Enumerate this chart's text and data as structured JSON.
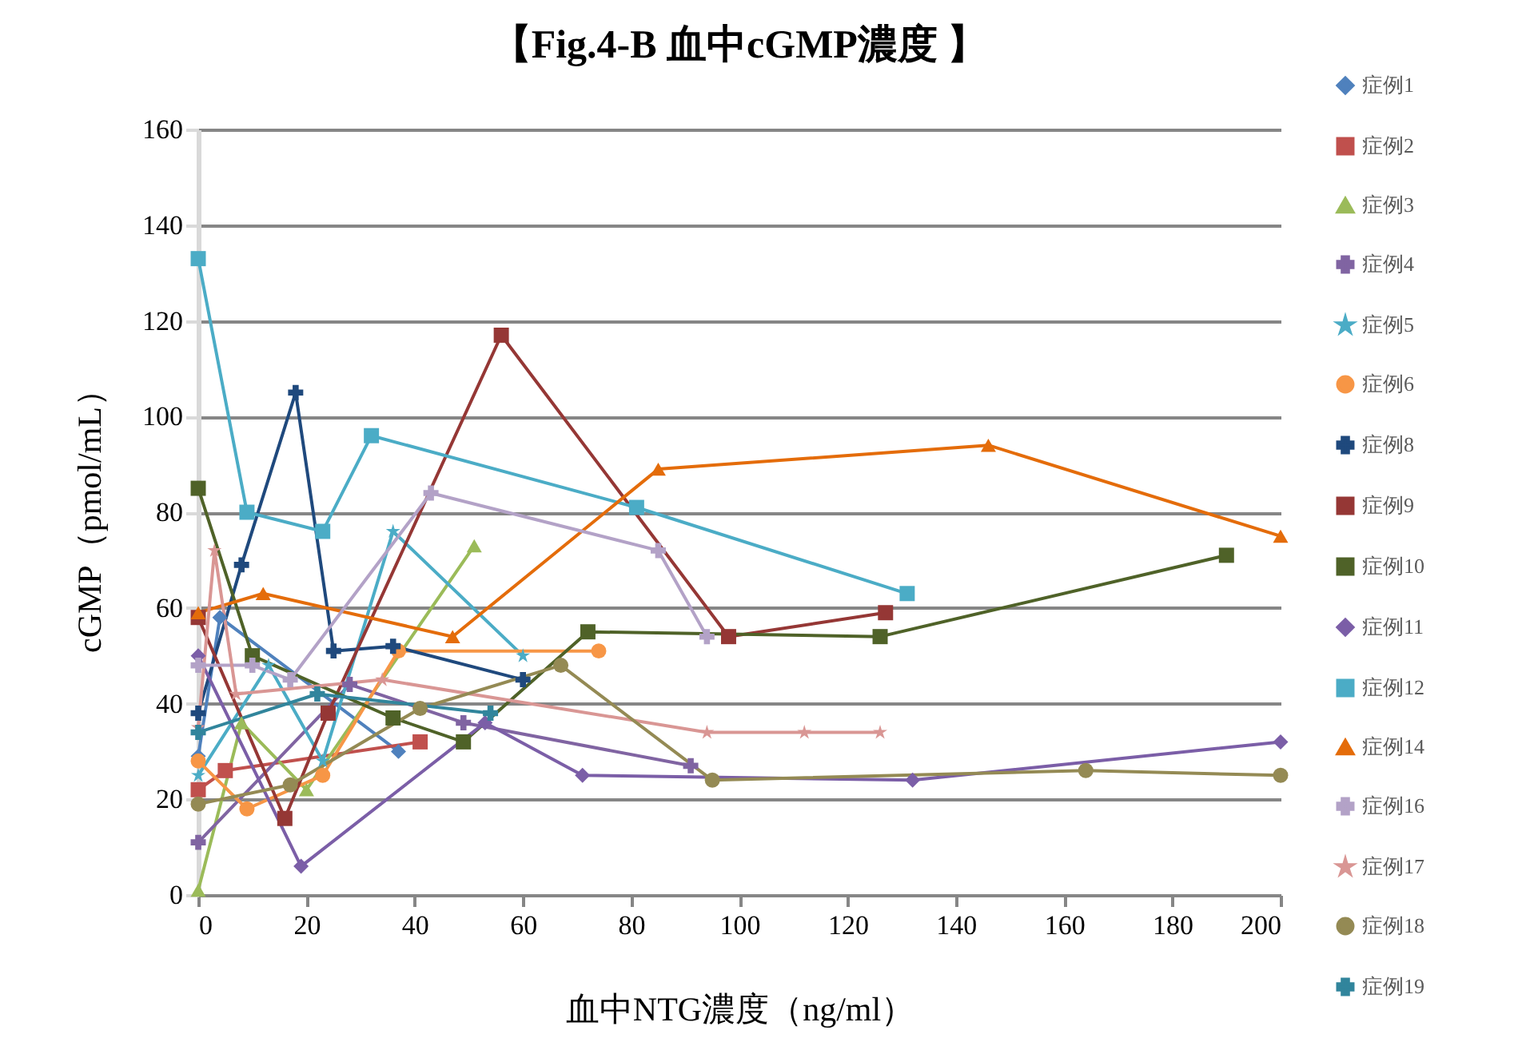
{
  "chart_data": {
    "type": "line",
    "title": "【Fig.4-B  血中cGMP濃度 】",
    "xlabel": "血中NTG濃度（ng/ml）",
    "ylabel": "cGMP（pmol/mL）",
    "xlim": [
      0,
      200
    ],
    "xticks": [
      0,
      20,
      40,
      60,
      80,
      100,
      120,
      140,
      160,
      180,
      200
    ],
    "ylim": [
      0,
      160
    ],
    "yticks": [
      0,
      20,
      40,
      60,
      80,
      100,
      120,
      140,
      160
    ],
    "grid": "y",
    "legend": "right",
    "series": [
      {
        "name": "症例1",
        "color": "#4f81bd",
        "marker": "diamond",
        "x": [
          0,
          4,
          37
        ],
        "values": [
          29,
          58,
          30
        ]
      },
      {
        "name": "症例2",
        "color": "#c0504d",
        "marker": "square",
        "x": [
          0,
          5,
          41
        ],
        "values": [
          22,
          26,
          32
        ]
      },
      {
        "name": "症例3",
        "color": "#9bbb59",
        "marker": "triangle",
        "x": [
          0,
          8,
          20,
          51
        ],
        "values": [
          1,
          36,
          22,
          73
        ]
      },
      {
        "name": "症例4",
        "color": "#8064a2",
        "marker": "cross",
        "x": [
          0,
          28,
          49,
          91
        ],
        "values": [
          11,
          44,
          36,
          27
        ]
      },
      {
        "name": "症例5",
        "color": "#4bacc6",
        "marker": "star",
        "x": [
          0,
          13,
          23,
          36,
          60
        ],
        "values": [
          25,
          48,
          28,
          76,
          50
        ]
      },
      {
        "name": "症例6",
        "color": "#f79646",
        "marker": "circle",
        "x": [
          0,
          9,
          23,
          37,
          74
        ],
        "values": [
          28,
          18,
          25,
          51,
          51
        ]
      },
      {
        "name": "症例8",
        "color": "#1f497d",
        "marker": "cross",
        "x": [
          0,
          8,
          18,
          25,
          36,
          60
        ],
        "values": [
          38,
          69,
          105,
          51,
          52,
          45
        ]
      },
      {
        "name": "症例9",
        "color": "#953735",
        "marker": "square",
        "x": [
          0,
          16,
          24,
          56,
          98,
          127
        ],
        "values": [
          58,
          16,
          38,
          117,
          54,
          59
        ]
      },
      {
        "name": "症例10",
        "color": "#4f6228",
        "marker": "square",
        "x": [
          0,
          10,
          36,
          49,
          72,
          126,
          190
        ],
        "values": [
          85,
          50,
          37,
          32,
          55,
          54,
          71
        ]
      },
      {
        "name": "症例11",
        "color": "#7b5ea7",
        "marker": "diamond",
        "x": [
          0,
          19,
          53,
          71,
          132,
          200
        ],
        "values": [
          50,
          6,
          36,
          25,
          24,
          32
        ]
      },
      {
        "name": "症例12",
        "color": "#4bacc6",
        "marker": "square",
        "x": [
          0,
          9,
          23,
          32,
          81,
          131
        ],
        "values": [
          133,
          80,
          76,
          96,
          81,
          63
        ]
      },
      {
        "name": "症例14",
        "color": "#e46c0a",
        "marker": "triangle",
        "x": [
          0,
          12,
          47,
          85,
          146,
          200
        ],
        "values": [
          59,
          63,
          54,
          89,
          94,
          75
        ]
      },
      {
        "name": "症例16",
        "color": "#b3a2c7",
        "marker": "cross",
        "x": [
          0,
          10,
          17,
          43,
          85,
          94
        ],
        "values": [
          48,
          48,
          45,
          84,
          72,
          54
        ]
      },
      {
        "name": "症例17",
        "color": "#d99694",
        "marker": "star",
        "x": [
          0,
          3,
          7,
          34,
          94,
          112,
          126
        ],
        "values": [
          35,
          72,
          42,
          45,
          34,
          34,
          34
        ]
      },
      {
        "name": "症例18",
        "color": "#948a54",
        "marker": "circle",
        "x": [
          0,
          17,
          41,
          67,
          95,
          164,
          200
        ],
        "values": [
          19,
          23,
          39,
          48,
          24,
          26,
          25
        ]
      },
      {
        "name": "症例19",
        "color": "#31859c",
        "marker": "cross",
        "x": [
          0,
          22,
          54
        ],
        "values": [
          34,
          42,
          38
        ]
      }
    ]
  }
}
